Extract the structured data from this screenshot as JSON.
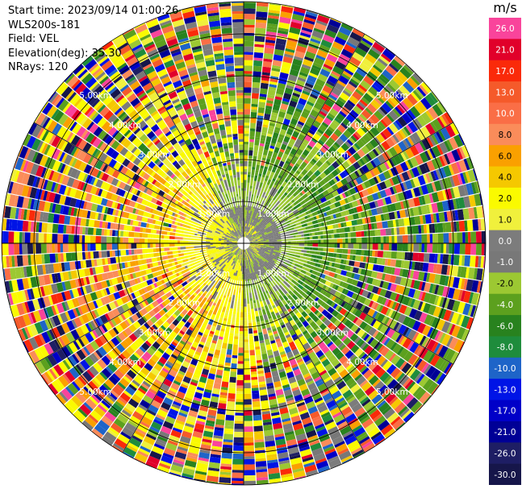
{
  "header": {
    "start_time": "Start time: 2023/09/14 01:00:26",
    "site": "WLS200s-181",
    "field": "Field: VEL",
    "elevation": "Elevation(deg): 35.30",
    "nrays": "NRays: 120"
  },
  "colorbar": {
    "unit": "m/s",
    "ticks": [
      "26.0",
      "21.0",
      "17.0",
      "13.0",
      "10.0",
      "8.0",
      "6.0",
      "4.0",
      "2.0",
      "1.0",
      "0.0",
      "-1.0",
      "-2.0",
      "-4.0",
      "-6.0",
      "-8.0",
      "-10.0",
      "-13.0",
      "-17.0",
      "-21.0",
      "-26.0",
      "-30.0"
    ],
    "colors": [
      "#f9449b",
      "#e1002a",
      "#fa2a0a",
      "#f55a2a",
      "#fa6e46",
      "#fa8c5a",
      "#faa000",
      "#f5c800",
      "#fafa00",
      "#f0f03c",
      "#7c7c7c",
      "#787878",
      "#9cc832",
      "#5ca01e",
      "#28821e",
      "#1e8c3c",
      "#1e64c8",
      "#0014e6",
      "#0000c8",
      "#000096",
      "#1e1e64",
      "#16164a"
    ]
  },
  "chart_data": {
    "type": "heatmap",
    "title": "",
    "nrays": 120,
    "field": "VEL",
    "unit": "m/s",
    "range_rings_km": [
      1.0,
      2.0,
      3.0,
      4.0,
      5.0
    ],
    "ring_labels": [
      "1.00km",
      "2.00km",
      "3.00km",
      "4.00km",
      "5.00km"
    ],
    "velocity_min": -30.0,
    "velocity_max": 26.0
  }
}
